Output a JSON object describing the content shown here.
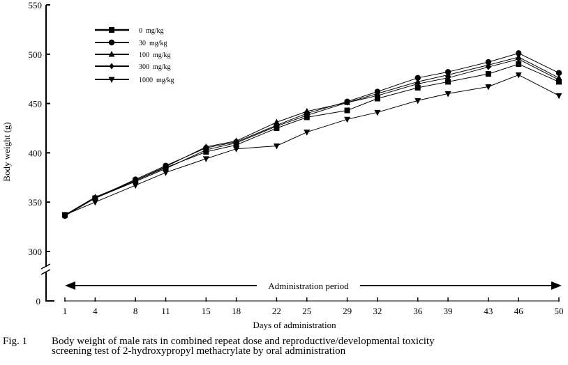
{
  "chart_data": {
    "type": "line",
    "title": "",
    "xlabel": "Days of administration",
    "ylabel": "Body weight (g)",
    "x": [
      1,
      4,
      8,
      11,
      15,
      18,
      22,
      25,
      29,
      32,
      36,
      39,
      43,
      46,
      50
    ],
    "x_tick_labels": [
      "1",
      "4",
      "8",
      "11",
      "15",
      "18",
      "22",
      "25",
      "29",
      "32",
      "36",
      "39",
      "43",
      "46",
      "50"
    ],
    "y_tick_labels": [
      "0",
      "300",
      "350",
      "400",
      "450",
      "500",
      "550"
    ],
    "y_ticks": [
      300,
      350,
      400,
      450,
      500,
      550
    ],
    "ylim": [
      300,
      550
    ],
    "y_axis_break": true,
    "grid": false,
    "legend_position": "top-left",
    "series": [
      {
        "name": "0  mg/kg",
        "marker": "square",
        "values": [
          337,
          354,
          372,
          385,
          401,
          408,
          425,
          436,
          443,
          455,
          466,
          472,
          480,
          490,
          472
        ]
      },
      {
        "name": "30  mg/kg",
        "marker": "circle",
        "values": [
          336,
          354,
          373,
          387,
          405,
          411,
          428,
          440,
          452,
          462,
          476,
          482,
          492,
          501,
          481
        ]
      },
      {
        "name": "100  mg/kg",
        "marker": "triangle-up",
        "values": [
          337,
          355,
          372,
          386,
          406,
          412,
          431,
          442,
          451,
          460,
          472,
          479,
          489,
          497,
          476
        ]
      },
      {
        "name": "300  mg/kg",
        "marker": "diamond",
        "values": [
          337,
          354,
          371,
          384,
          403,
          410,
          427,
          438,
          451,
          458,
          470,
          476,
          487,
          495,
          474
        ]
      },
      {
        "name": "1000  mg/kg",
        "marker": "triangle-down",
        "values": [
          337,
          350,
          367,
          380,
          394,
          404,
          407,
          421,
          434,
          441,
          453,
          460,
          467,
          479,
          458
        ]
      }
    ],
    "annotations": [
      "Administration period"
    ]
  },
  "caption": {
    "fig_label": "Fig. 1",
    "line1": "Body weight of male rats in combined repeat dose and reproductive/developmental toxicity",
    "line2": "screening test of 2-hydroxypropyl methacrylate by oral administration"
  },
  "colors": {
    "ink": "#000000",
    "background": "#ffffff"
  }
}
